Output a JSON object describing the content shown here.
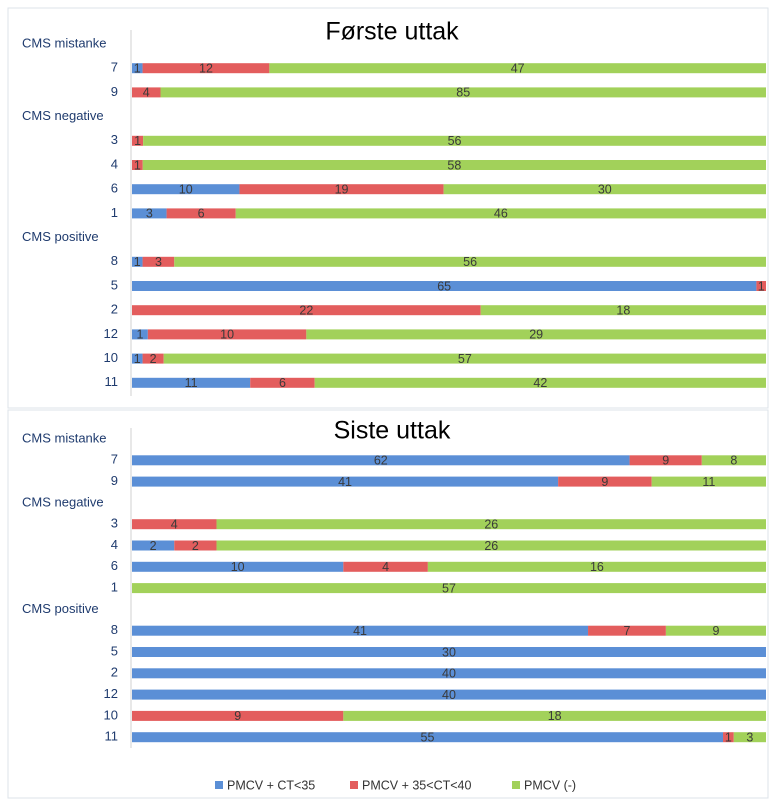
{
  "chart_data": [
    {
      "type": "bar",
      "orientation": "horizontal",
      "stacked": "percent",
      "title": "Første uttak",
      "groups": [
        {
          "name": "CMS mistanke",
          "categories": [
            "7",
            "9"
          ]
        },
        {
          "name": "CMS negative",
          "categories": [
            "3",
            "4",
            "6",
            "1"
          ]
        },
        {
          "name": "CMS positive",
          "categories": [
            "8",
            "5",
            "2",
            "12",
            "10",
            "11"
          ]
        }
      ],
      "series": [
        {
          "name": "PMCV + CT<35",
          "color": "#5b8fd6",
          "values": [
            1,
            null,
            null,
            null,
            10,
            3,
            1,
            65,
            null,
            1,
            1,
            11
          ]
        },
        {
          "name": "PMCV + 35<CT<40",
          "color": "#e35d5d",
          "values": [
            12,
            4,
            1,
            1,
            19,
            6,
            3,
            1,
            22,
            10,
            2,
            6
          ]
        },
        {
          "name": "PMCV (-)",
          "color": "#a2d15a",
          "values": [
            47,
            85,
            56,
            58,
            30,
            46,
            56,
            null,
            18,
            29,
            57,
            42
          ]
        }
      ]
    },
    {
      "type": "bar",
      "orientation": "horizontal",
      "stacked": "percent",
      "title": "Siste uttak",
      "groups": [
        {
          "name": "CMS mistanke",
          "categories": [
            "7",
            "9"
          ]
        },
        {
          "name": "CMS negative",
          "categories": [
            "3",
            "4",
            "6",
            "1"
          ]
        },
        {
          "name": "CMS positive",
          "categories": [
            "8",
            "5",
            "2",
            "12",
            "10",
            "11"
          ]
        }
      ],
      "series": [
        {
          "color": "#5b8fd6",
          "values": [
            62,
            41,
            null,
            2,
            10,
            null,
            41,
            30,
            40,
            40,
            null,
            55
          ]
        },
        {
          "color": "#e35d5d",
          "values": [
            9,
            9,
            4,
            2,
            4,
            null,
            7,
            null,
            null,
            null,
            9,
            1
          ]
        },
        {
          "color": "#a2d15a",
          "values": [
            8,
            11,
            26,
            26,
            16,
            57,
            9,
            null,
            null,
            null,
            18,
            3
          ]
        }
      ]
    }
  ]
}
